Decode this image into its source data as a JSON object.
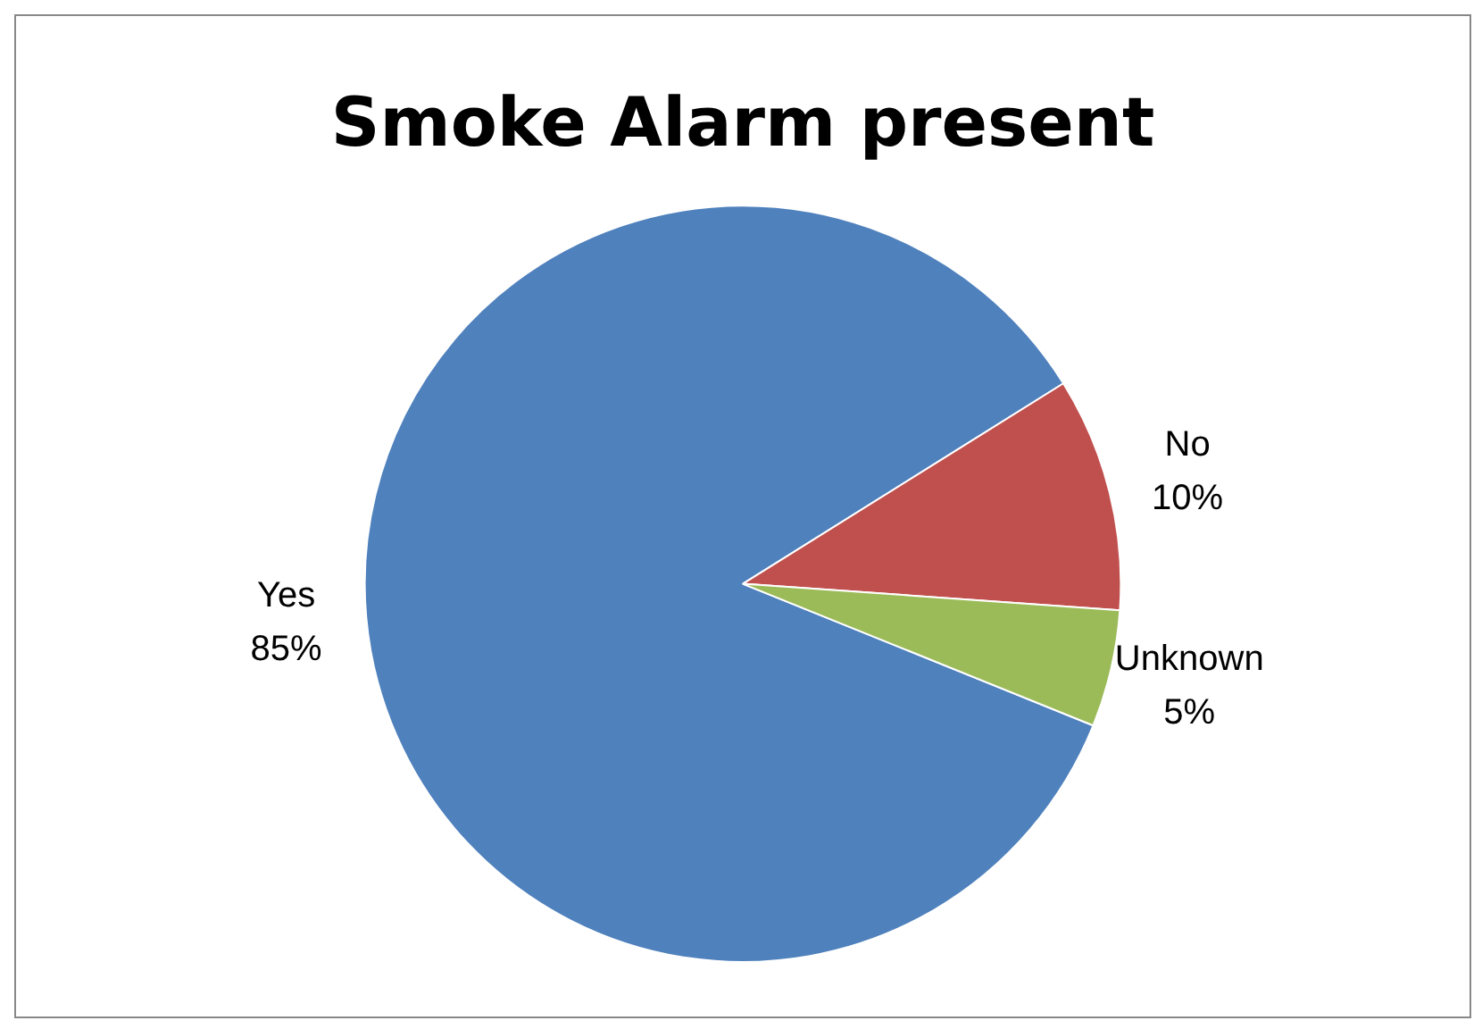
{
  "chart_data": {
    "type": "pie",
    "title": "Smoke Alarm present",
    "categories": [
      "Yes",
      "No",
      "Unknown"
    ],
    "values": [
      85,
      10,
      5
    ],
    "colors": [
      "#4f81bd",
      "#c0504d",
      "#9bbb59"
    ],
    "value_labels": [
      "85%",
      "10%",
      "5%"
    ],
    "legend": false
  }
}
